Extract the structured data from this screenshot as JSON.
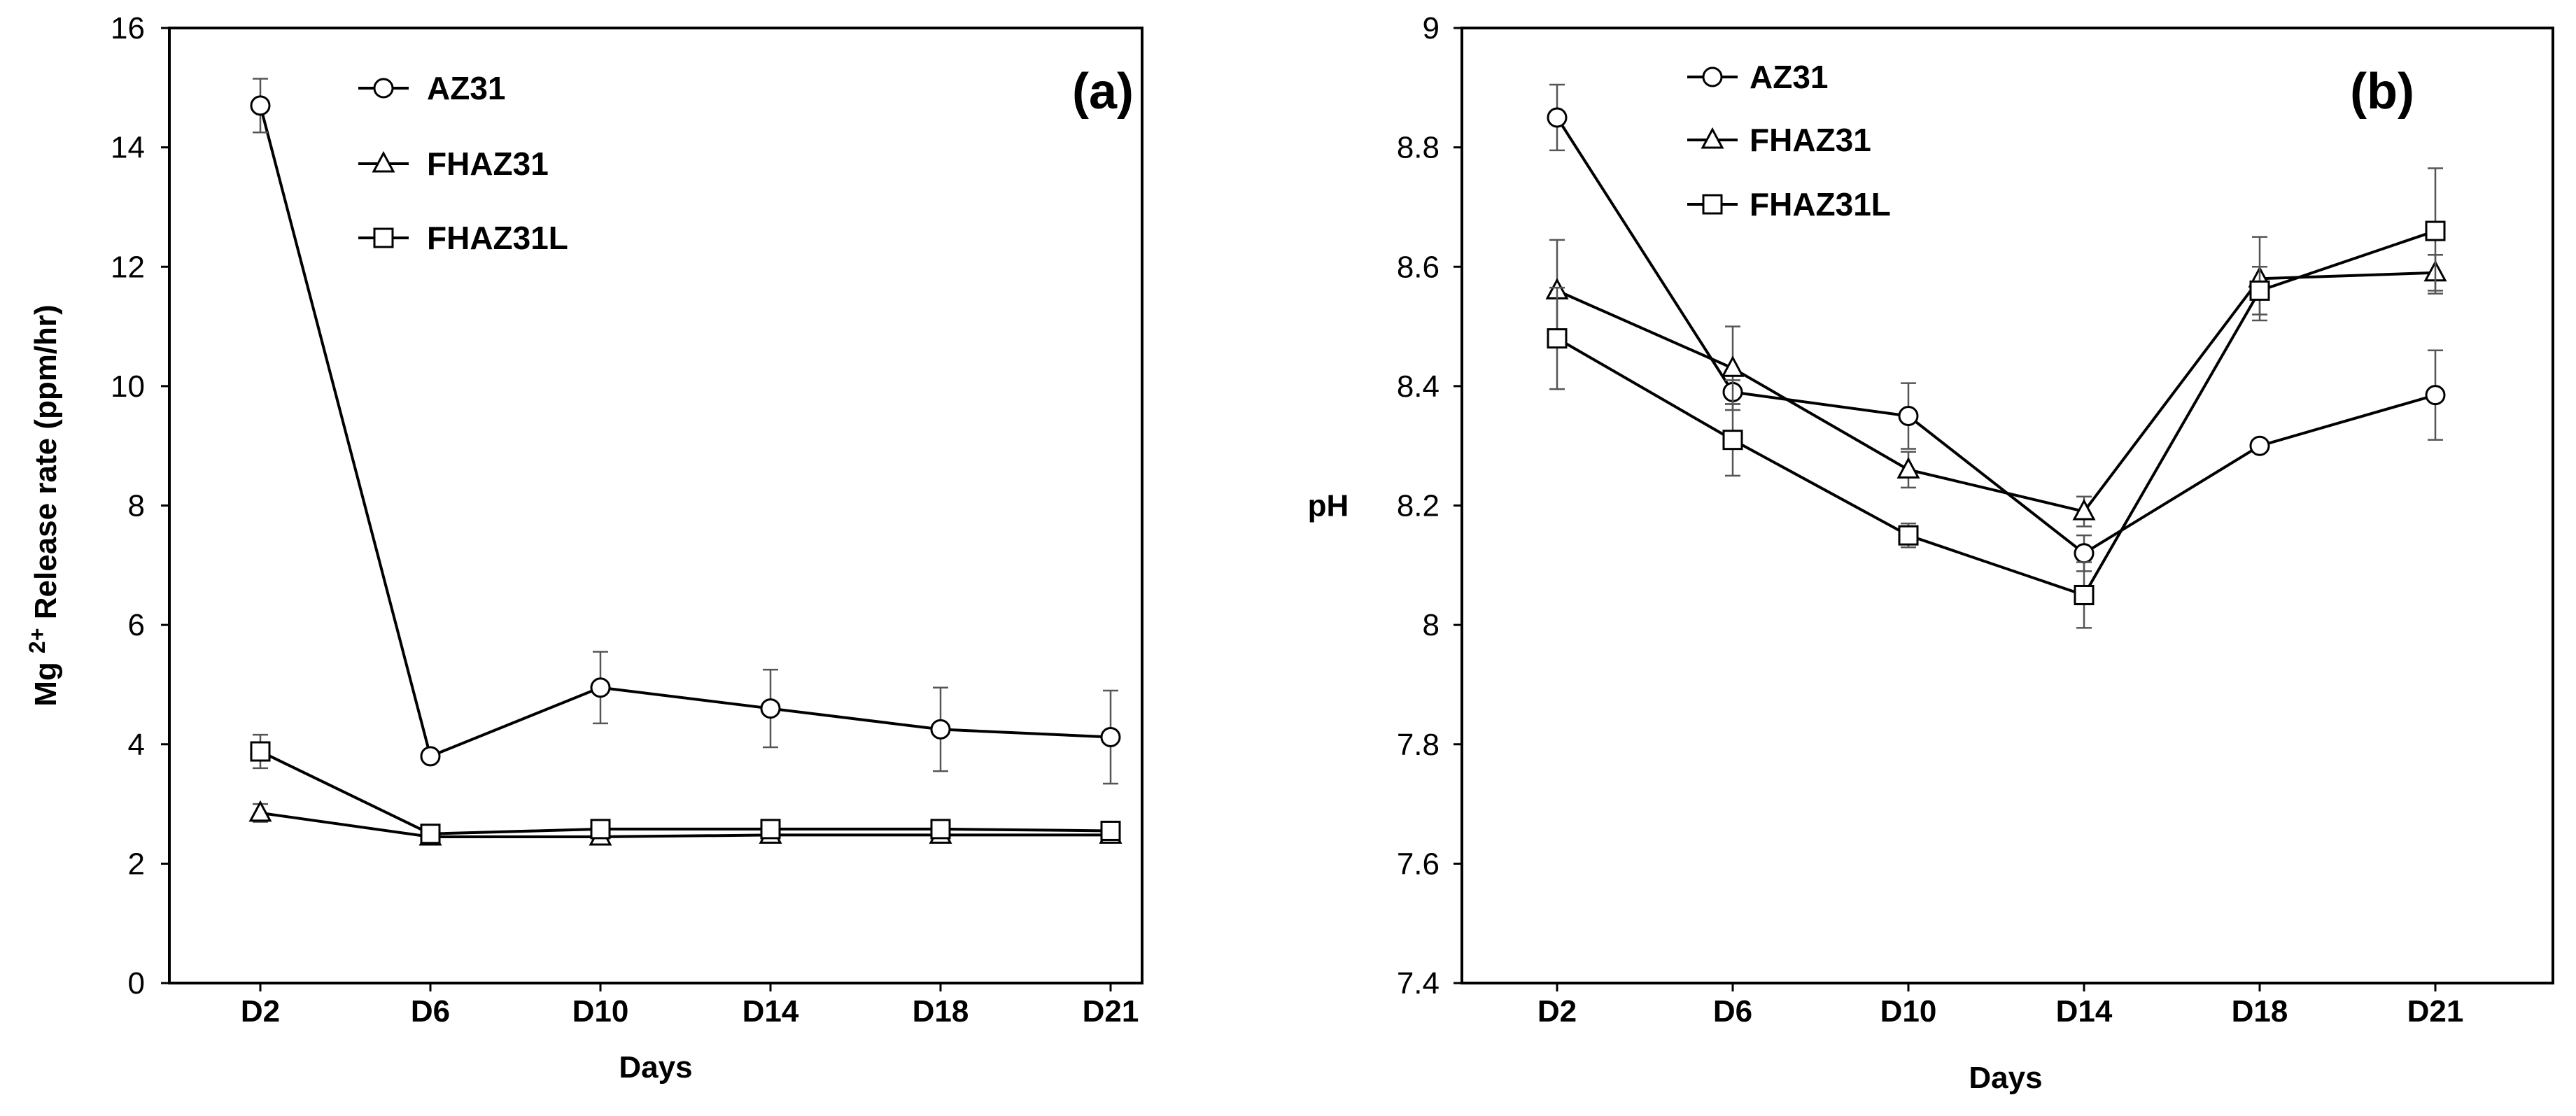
{
  "chart_data": [
    {
      "type": "line",
      "panel_label": "(a)",
      "categories": [
        "D2",
        "D6",
        "D10",
        "D14",
        "D18",
        "D21"
      ],
      "xlabel": "Days",
      "ylabel": "Mg",
      "ylabel_sup": "2+",
      "ylabel_rest": " Release rate (ppm/hr)",
      "ylim": [
        0,
        16
      ],
      "yticks": [
        0,
        2,
        4,
        6,
        8,
        10,
        12,
        14,
        16
      ],
      "ytick_labels": [
        "0",
        "2",
        "4",
        "6",
        "8",
        "10",
        "12",
        "14",
        "16"
      ],
      "grid": false,
      "legend_position": "top-left",
      "series": [
        {
          "name": "AZ31",
          "marker": "circle",
          "values": [
            14.7,
            3.8,
            4.95,
            4.6,
            4.25,
            4.12
          ],
          "errors": [
            0.45,
            0.05,
            0.6,
            0.65,
            0.7,
            0.78
          ]
        },
        {
          "name": "FHAZ31",
          "marker": "triangle",
          "values": [
            2.85,
            2.45,
            2.45,
            2.48,
            2.48,
            2.48
          ],
          "errors": [
            0.15,
            0.05,
            0.05,
            0.05,
            0.05,
            0.05
          ]
        },
        {
          "name": "FHAZ31L",
          "marker": "square",
          "values": [
            3.88,
            2.5,
            2.58,
            2.58,
            2.58,
            2.55
          ],
          "errors": [
            0.28,
            0.05,
            0.05,
            0.05,
            0.05,
            0.05
          ]
        }
      ]
    },
    {
      "type": "line",
      "panel_label": "(b)",
      "categories": [
        "D2",
        "D6",
        "D10",
        "D14",
        "D18",
        "D21"
      ],
      "xlabel": "Days",
      "ylabel": "pH",
      "ylim": [
        7.4,
        9
      ],
      "yticks": [
        7.4,
        7.6,
        7.8,
        8,
        8.2,
        8.4,
        8.6,
        8.8,
        9
      ],
      "ytick_labels": [
        "7.4",
        "7.6",
        "7.8",
        "8",
        "8.2",
        "8.4",
        "8.6",
        "8.8",
        "9"
      ],
      "grid": false,
      "legend_position": "top-left",
      "series": [
        {
          "name": "AZ31",
          "marker": "circle",
          "values": [
            8.85,
            8.39,
            8.35,
            8.12,
            8.3,
            8.385
          ],
          "errors": [
            0.055,
            0.02,
            0.055,
            0.03,
            0.01,
            0.075
          ]
        },
        {
          "name": "FHAZ31",
          "marker": "triangle",
          "values": [
            8.56,
            8.43,
            8.26,
            8.19,
            8.58,
            8.59
          ],
          "errors": [
            0.085,
            0.07,
            0.03,
            0.025,
            0.07,
            0.03
          ]
        },
        {
          "name": "FHAZ31L",
          "marker": "square",
          "values": [
            8.48,
            8.31,
            8.15,
            8.05,
            8.56,
            8.66
          ],
          "errors": [
            0.085,
            0.06,
            0.02,
            0.055,
            0.04,
            0.105
          ]
        }
      ]
    }
  ]
}
